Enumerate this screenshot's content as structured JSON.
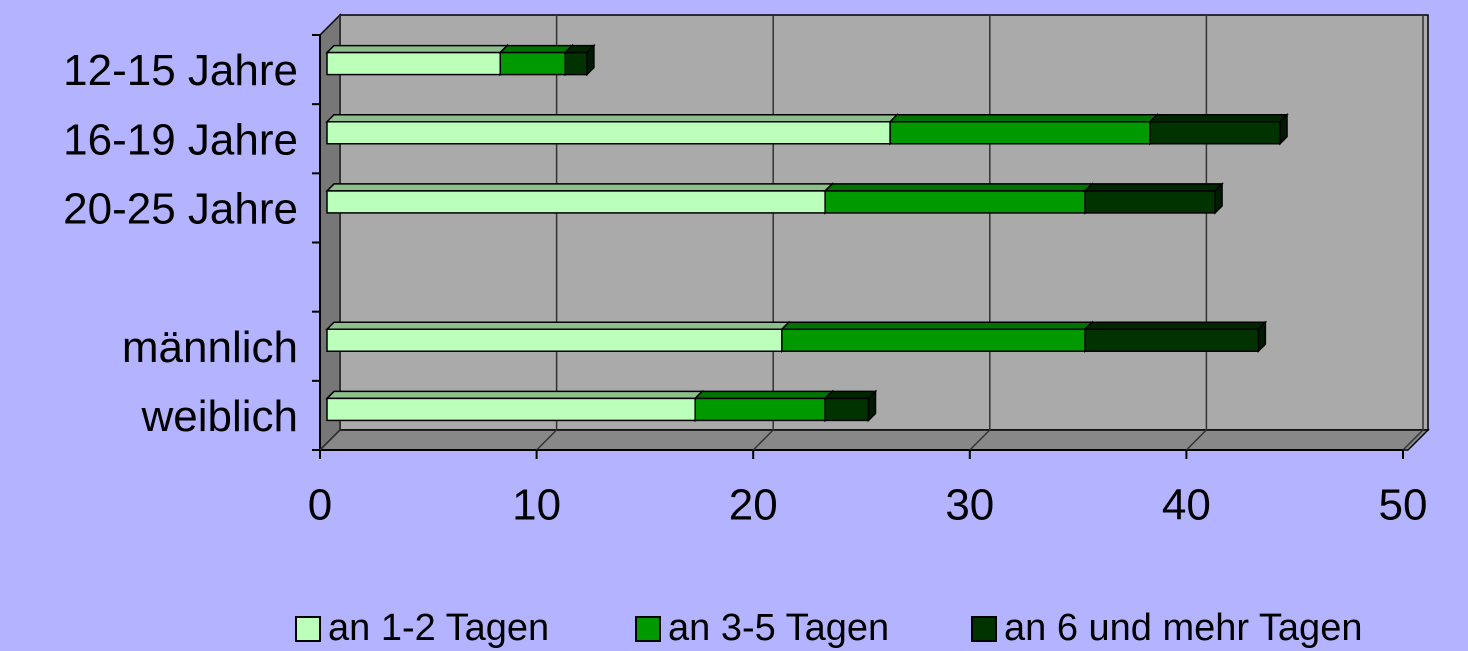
{
  "chart_data": {
    "type": "bar",
    "orientation": "horizontal",
    "stacked": true,
    "categories": [
      "12-15 Jahre",
      "16-19 Jahre",
      "20-25 Jahre",
      null,
      "männlich",
      "weiblich"
    ],
    "series": [
      {
        "name": "an 1-2 Tagen",
        "color": "#bbffbb",
        "values": [
          8,
          26,
          23,
          null,
          21,
          17
        ]
      },
      {
        "name": "an 3-5 Tagen",
        "color": "#009900",
        "values": [
          3,
          12,
          12,
          null,
          14,
          6
        ]
      },
      {
        "name": "an 6 und mehr Tagen",
        "color": "#003300",
        "values": [
          1,
          6,
          6,
          null,
          8,
          2
        ]
      }
    ],
    "xlim": [
      0,
      50
    ],
    "xticks": [
      0,
      10,
      20,
      30,
      40,
      50
    ],
    "grid": true,
    "legend": "bottom"
  }
}
